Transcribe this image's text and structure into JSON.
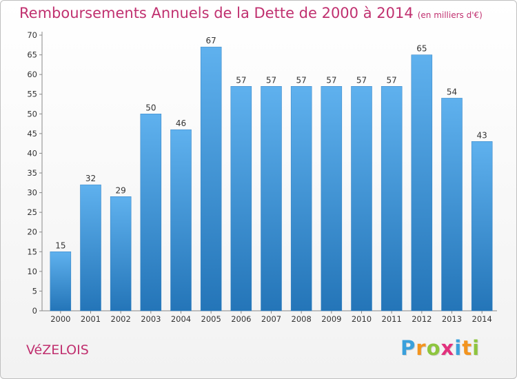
{
  "chart_data": {
    "type": "bar",
    "title": "Remboursements Annuels de la Dette de 2000 à 2014",
    "subtitle": "(en milliers d'€)",
    "categories": [
      "2000",
      "2001",
      "2002",
      "2003",
      "2004",
      "2005",
      "2006",
      "2007",
      "2008",
      "2009",
      "2010",
      "2011",
      "2012",
      "2013",
      "2014"
    ],
    "values": [
      15,
      32,
      29,
      50,
      46,
      67,
      57,
      57,
      57,
      57,
      57,
      57,
      65,
      54,
      43
    ],
    "yticks": [
      0,
      5,
      10,
      15,
      20,
      25,
      30,
      35,
      40,
      45,
      50,
      55,
      60,
      65,
      70
    ],
    "ylim": [
      0,
      70
    ],
    "xlabel": "",
    "ylabel": "",
    "grid": false,
    "bar_color": "#3a8fd6"
  },
  "commune": "VéZELOIS",
  "logo": {
    "letters": [
      "P",
      "r",
      "o",
      "x",
      "i",
      "t",
      "i"
    ],
    "colors": [
      "#3aa0dc",
      "#f3941f",
      "#8ec53e",
      "#e2317d",
      "#3aa0dc",
      "#f3941f",
      "#8ec53e"
    ]
  }
}
